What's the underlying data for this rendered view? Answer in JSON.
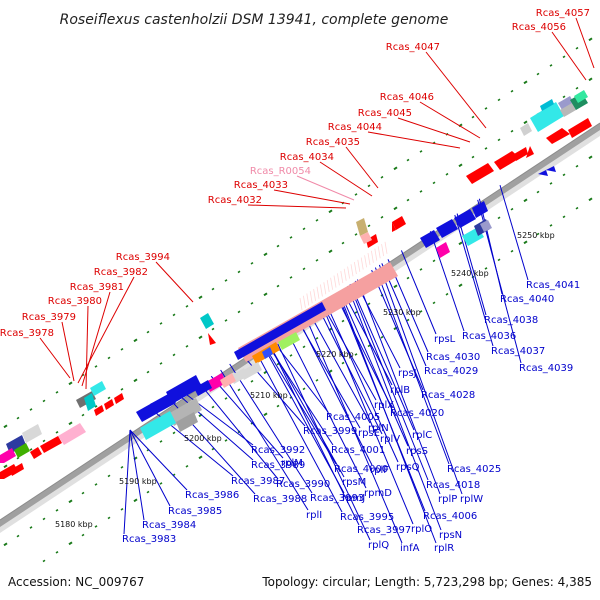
{
  "title": "Roseiflexus castenholzii DSM 13941, complete genome",
  "footer": {
    "accession": "Accession: NC_009767",
    "summary": "Topology: circular; Length: 5,723,298 bp; Genes: 4,385"
  },
  "colors": {
    "upper_label": "#dd0000",
    "rna_label": "#f08aa8",
    "lower_label": "#0000cc",
    "backbone": "#999999",
    "tick": "#1a7a1a"
  },
  "scale_labels": [
    "5180 kbp",
    "5190 kbp",
    "5200 kbp",
    "5210 kbp",
    "5220 kbp",
    "5230 kbp",
    "5240 kbp",
    "5250 kbp"
  ],
  "upper_labels": [
    "Rcas_4057",
    "Rcas_4056",
    "Rcas_4047",
    "Rcas_4046",
    "Rcas_4045",
    "Rcas_4044",
    "Rcas_4035",
    "Rcas_4034",
    "Rcas_R0054",
    "Rcas_4033",
    "Rcas_4032",
    "Rcas_3994",
    "Rcas_3982",
    "Rcas_3981",
    "Rcas_3980",
    "Rcas_3979",
    "Rcas_3978"
  ],
  "lower_labels": [
    "Rcas_4041",
    "Rcas_4040",
    "Rcas_4038",
    "Rcas_4036",
    "Rcas_4037",
    "Rcas_4039",
    "rpsL",
    "Rcas_4030",
    "Rcas_4029",
    "rpsJ",
    "rplB",
    "Rcas_4028",
    "rplX",
    "Rcas_4020",
    "Rcas_4005",
    "rpsE",
    "rplN",
    "rplC",
    "Rcas_3999",
    "rplV",
    "Rcas_4001",
    "rpsS",
    "Rcas_3992",
    "rplM",
    "Rcas_4000",
    "rplF",
    "rpsQ",
    "Rcas_4025",
    "Rcas_3989",
    "rpsM",
    "Rcas_4018",
    "Rcas_3987",
    "Rcas_3990",
    "rpmD",
    "rplP",
    "rplW",
    "Rcas_3986",
    "Rcas_3988",
    "Rcas_3993",
    "rpmJ",
    "Rcas_4006",
    "Rcas_3985",
    "rplI",
    "Rcas_3995",
    "rplO",
    "Rcas_3984",
    "Rcas_3997",
    "rpsN",
    "Rcas_3983",
    "rplQ",
    "infA",
    "rplR"
  ]
}
